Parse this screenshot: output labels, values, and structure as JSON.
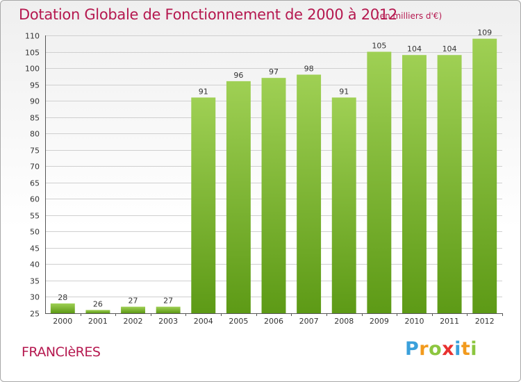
{
  "header": {
    "title": "Dotation Globale de Fonctionnement de 2000 à 2012",
    "unit": "(en milliers d'€)"
  },
  "commune": "FRANCIèRES",
  "brand": {
    "letters": [
      {
        "char": "P",
        "color": "#3aa0db"
      },
      {
        "char": "r",
        "color": "#f29a1d"
      },
      {
        "char": "o",
        "color": "#8cc63f"
      },
      {
        "char": "x",
        "color": "#e8312f"
      },
      {
        "char": "i",
        "color": "#3aa0db"
      },
      {
        "char": "t",
        "color": "#f29a1d"
      },
      {
        "char": "i",
        "color": "#8cc63f"
      }
    ]
  },
  "colors": {
    "bar_light": "#9fd054",
    "bar_dark": "#5d9a16",
    "grid": "#cfcfcf",
    "title": "#b5184f"
  },
  "chart_data": {
    "type": "bar",
    "title": "Dotation Globale de Fonctionnement de 2000 à 2012",
    "subtitle": "(en milliers d'€)",
    "xlabel": "",
    "ylabel": "",
    "categories": [
      "2000",
      "2001",
      "2002",
      "2003",
      "2004",
      "2005",
      "2006",
      "2007",
      "2008",
      "2009",
      "2010",
      "2011",
      "2012"
    ],
    "values": [
      28,
      26,
      27,
      27,
      91,
      96,
      97,
      98,
      91,
      105,
      104,
      104,
      109
    ],
    "ylim": [
      25,
      110
    ],
    "yticks": [
      25,
      30,
      35,
      40,
      45,
      50,
      55,
      60,
      65,
      70,
      75,
      80,
      85,
      90,
      95,
      100,
      105,
      110
    ],
    "grid": true,
    "legend": "none"
  }
}
